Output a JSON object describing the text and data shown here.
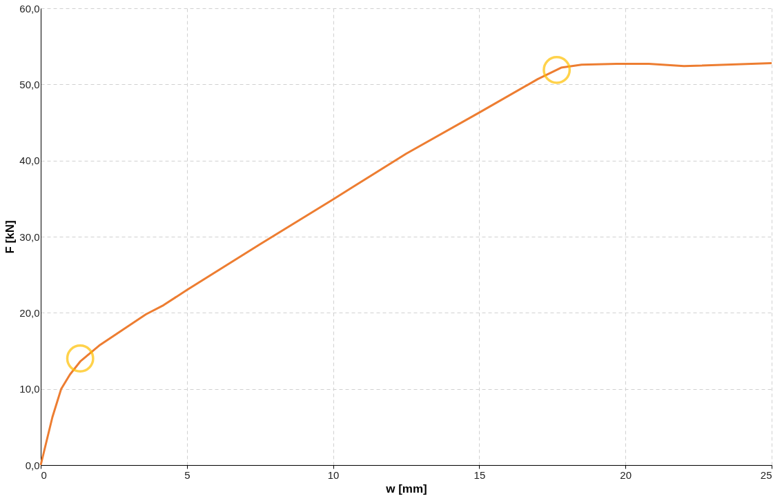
{
  "chart_data": {
    "type": "line",
    "xlabel": "w [mm]",
    "ylabel": "F [kN]",
    "xlim": [
      0,
      25
    ],
    "xticks": [
      0,
      5,
      10,
      15,
      20,
      25
    ],
    "ylim": [
      0,
      60
    ],
    "yticks": [
      {
        "value": 0,
        "label": "0,0"
      },
      {
        "value": 10,
        "label": "10,0"
      },
      {
        "value": 20,
        "label": "20,0"
      },
      {
        "value": 30,
        "label": "30,0"
      },
      {
        "value": 40,
        "label": "40,0"
      },
      {
        "value": 50,
        "label": "50,0"
      },
      {
        "value": 60,
        "label": "60,0"
      }
    ],
    "grid": true,
    "line_style": "solid",
    "series": [
      {
        "color": "#ed7d31",
        "x": [
          0,
          0.4,
          0.7,
          1.0,
          1.35,
          2.0,
          3.6,
          4.2,
          5.0,
          7.5,
          10.0,
          12.5,
          15.0,
          17.0,
          17.8,
          18.5,
          19.7,
          20.8,
          22.0,
          25.0
        ],
        "values": [
          0,
          6.3,
          10.0,
          11.9,
          13.6,
          15.7,
          19.8,
          21.0,
          23.0,
          29.0,
          34.9,
          40.9,
          46.3,
          50.7,
          52.2,
          52.6,
          52.7,
          52.7,
          52.4,
          52.8
        ]
      },
      {
        "type": "scatter",
        "marker": "circle",
        "color": "#ffc000",
        "x": [
          1.35,
          17.65
        ],
        "values": [
          14.0,
          51.9
        ]
      }
    ]
  }
}
